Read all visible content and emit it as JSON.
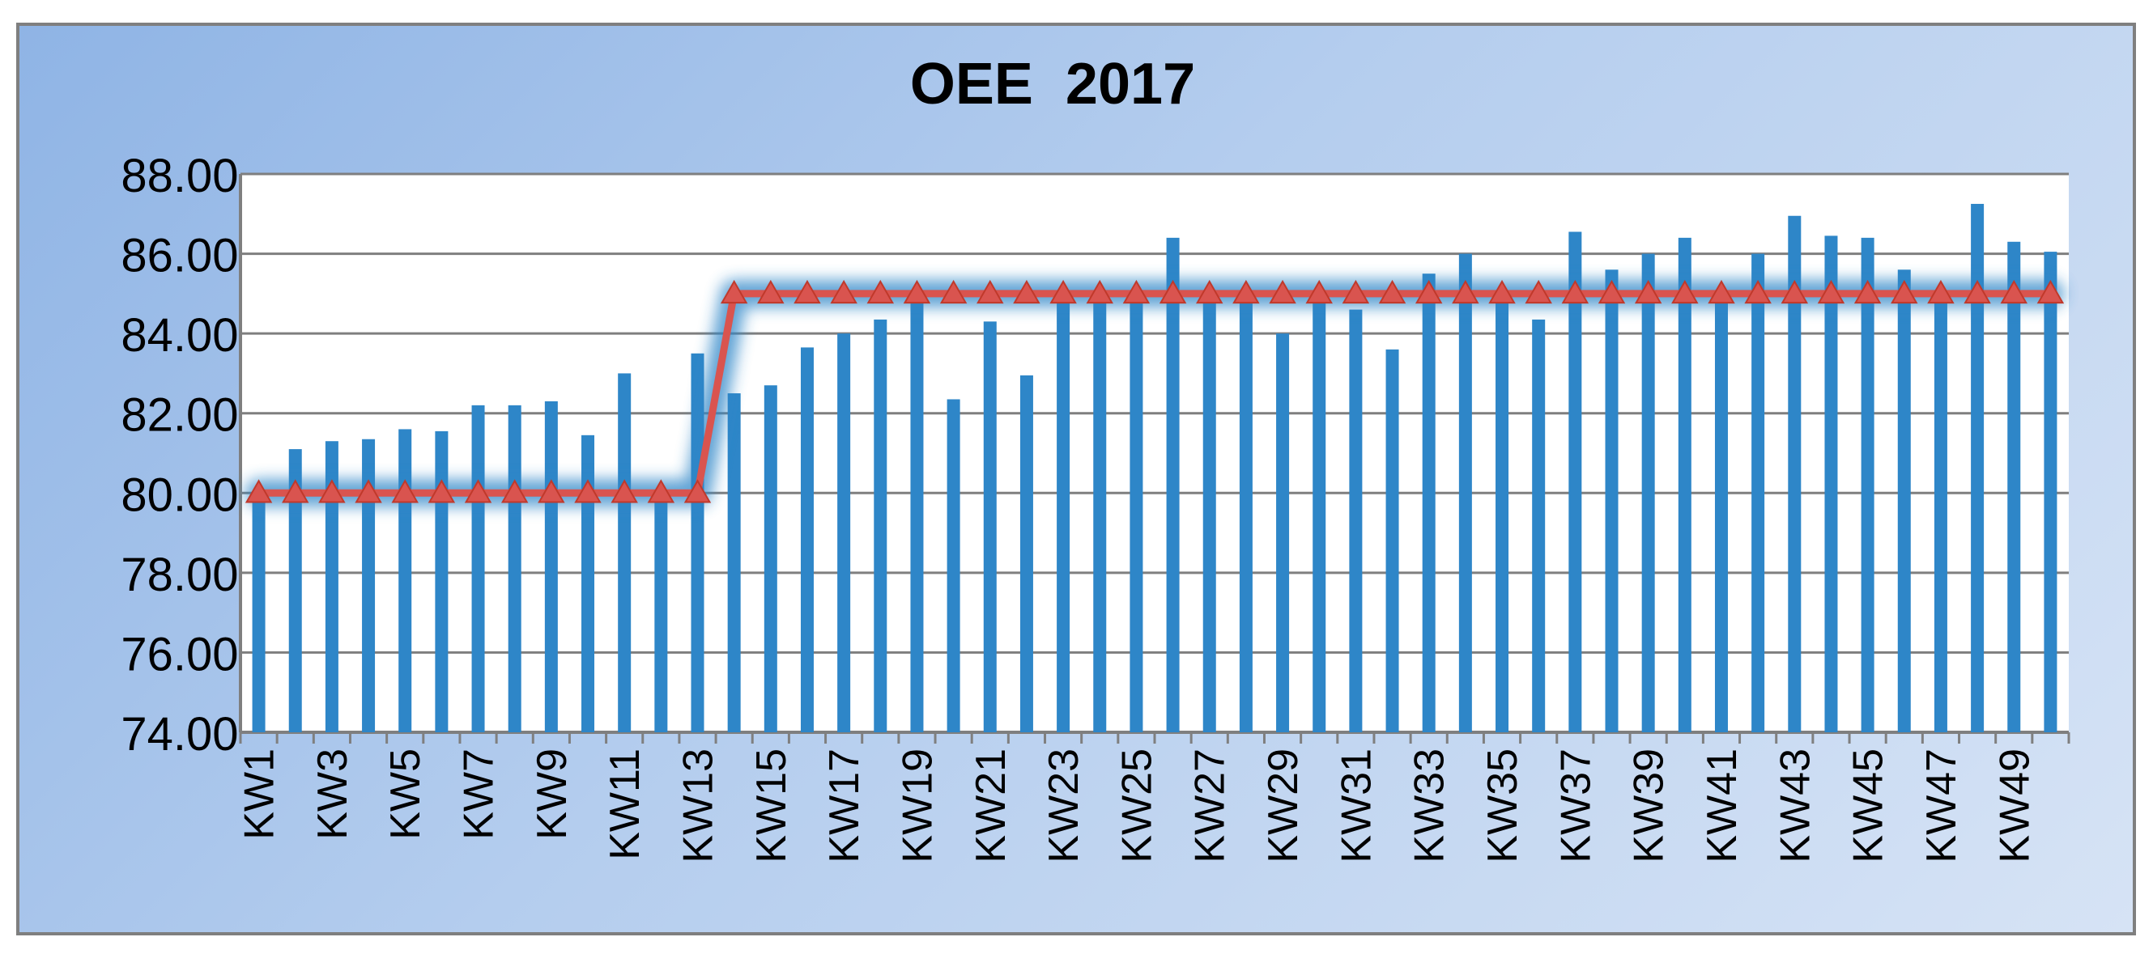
{
  "chart_data": {
    "type": "bar",
    "title": "OEE  2017",
    "xlabel": "",
    "ylabel": "",
    "ylim": [
      74,
      88
    ],
    "yticks": [
      "74.00",
      "76.00",
      "78.00",
      "80.00",
      "82.00",
      "84.00",
      "86.00",
      "88.00"
    ],
    "grid": true,
    "legend": "none",
    "categories": [
      "KW1",
      "KW2",
      "KW3",
      "KW4",
      "KW5",
      "KW6",
      "KW7",
      "KW8",
      "KW9",
      "KW10",
      "KW11",
      "KW12",
      "KW13",
      "KW14",
      "KW15",
      "KW16",
      "KW17",
      "KW18",
      "KW19",
      "KW20",
      "KW21",
      "KW22",
      "KW23",
      "KW24",
      "KW25",
      "KW26",
      "KW27",
      "KW28",
      "KW29",
      "KW30",
      "KW31",
      "KW32",
      "KW33",
      "KW34",
      "KW35",
      "KW36",
      "KW37",
      "KW38",
      "KW39",
      "KW40",
      "KW41",
      "KW42",
      "KW43",
      "KW44",
      "KW45",
      "KW46",
      "KW47",
      "KW48",
      "KW49",
      "KW50"
    ],
    "visible_tick_labels": [
      "KW1",
      "KW3",
      "KW5",
      "KW7",
      "KW9",
      "KW11",
      "KW13",
      "KW15",
      "KW17",
      "KW19",
      "KW21",
      "KW23",
      "KW25",
      "KW27",
      "KW29",
      "KW31",
      "KW33",
      "KW35",
      "KW37",
      "KW39",
      "KW41",
      "KW43",
      "KW45",
      "KW47",
      "KW49"
    ],
    "series": [
      {
        "type": "bar",
        "color": "#2e86c8",
        "values": [
          79.9,
          81.1,
          81.3,
          81.35,
          81.6,
          81.55,
          82.2,
          82.2,
          82.3,
          81.45,
          83.0,
          79.9,
          83.5,
          82.5,
          82.7,
          83.65,
          84.0,
          84.35,
          85.0,
          82.35,
          84.3,
          82.95,
          84.95,
          85.0,
          85.0,
          86.4,
          85.0,
          85.0,
          84.0,
          85.0,
          84.6,
          83.6,
          85.5,
          86.0,
          85.0,
          84.35,
          86.55,
          85.6,
          86.0,
          86.4,
          85.0,
          86.0,
          86.95,
          86.45,
          86.4,
          85.6,
          85.0,
          87.25,
          86.3,
          86.05
        ]
      },
      {
        "type": "line",
        "color": "#d9544f",
        "marker": "triangle",
        "values": [
          80,
          80,
          80,
          80,
          80,
          80,
          80,
          80,
          80,
          80,
          80,
          80,
          80,
          85,
          85,
          85,
          85,
          85,
          85,
          85,
          85,
          85,
          85,
          85,
          85,
          85,
          85,
          85,
          85,
          85,
          85,
          85,
          85,
          85,
          85,
          85,
          85,
          85,
          85,
          85,
          85,
          85,
          85,
          85,
          85,
          85,
          85,
          85,
          85,
          85
        ]
      }
    ]
  }
}
